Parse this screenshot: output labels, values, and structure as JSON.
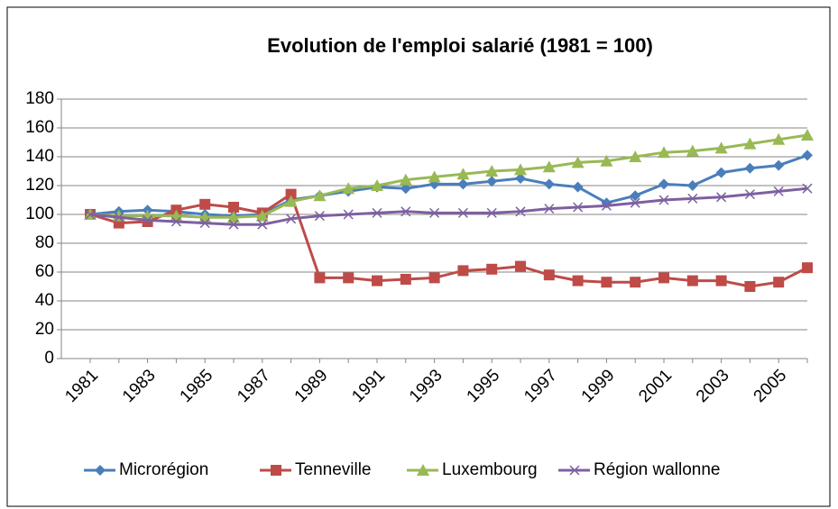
{
  "chart_data": {
    "type": "line",
    "title": "Evolution de l'emploi salarié (1981 = 100)",
    "categories": [
      "1981",
      null,
      "1983",
      null,
      "1985",
      null,
      "1987",
      null,
      "1989",
      null,
      "1991",
      null,
      "1993",
      null,
      "1995",
      null,
      "1997",
      null,
      "1999",
      null,
      "2001",
      null,
      "2003",
      null,
      "2005",
      null
    ],
    "ylim": [
      0,
      180
    ],
    "yticks": [
      0,
      20,
      40,
      60,
      80,
      100,
      120,
      140,
      160,
      180
    ],
    "grid": true,
    "legend": "bottom",
    "series": [
      {
        "name": "Microrégion",
        "color": "#4a7ebb",
        "marker": "diamond",
        "values": [
          100,
          102,
          103,
          102,
          100,
          99,
          100,
          110,
          113,
          116,
          119,
          118,
          121,
          121,
          123,
          125,
          121,
          119,
          108,
          113,
          121,
          120,
          129,
          132,
          134,
          141
        ]
      },
      {
        "name": "Tenneville",
        "color": "#be4b48",
        "marker": "square",
        "values": [
          100,
          94,
          95,
          103,
          107,
          105,
          101,
          114,
          56,
          56,
          54,
          55,
          56,
          61,
          62,
          64,
          58,
          54,
          53,
          53,
          56,
          54,
          54,
          50,
          53,
          63
        ]
      },
      {
        "name": "Luxembourg",
        "color": "#98b954",
        "marker": "triangle",
        "values": [
          100,
          99,
          99,
          99,
          98,
          98,
          99,
          109,
          113,
          118,
          120,
          124,
          126,
          128,
          130,
          131,
          133,
          136,
          137,
          140,
          143,
          144,
          146,
          149,
          152,
          155
        ]
      },
      {
        "name": "Région wallonne",
        "color": "#7d60a0",
        "marker": "x",
        "values": [
          100,
          98,
          96,
          95,
          94,
          93,
          93,
          97,
          99,
          100,
          101,
          102,
          101,
          101,
          101,
          102,
          104,
          105,
          106,
          108,
          110,
          111,
          112,
          114,
          116,
          118
        ]
      }
    ]
  }
}
